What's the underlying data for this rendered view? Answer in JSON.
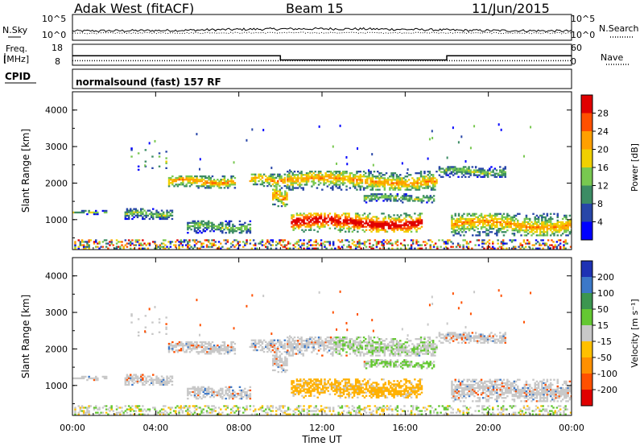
{
  "header": {
    "radar": "Adak West (fitACF)",
    "beam": "Beam 15",
    "date": "11/Jun/2015"
  },
  "top_panels": {
    "nsky_label": "N.Sky",
    "nsearch_label": "N.Search",
    "noise_ticks": [
      "10^5",
      "10^0"
    ],
    "freq_label": "Freq.",
    "freq_unit": "[MHz]",
    "freq_ticks": [
      "18",
      "8"
    ],
    "nave_label": "Nave",
    "nave_ticks": [
      "60",
      "0"
    ],
    "cpid_label": "CPID",
    "cpid_text": "normalsound (fast) 157 RF"
  },
  "chart_data": [
    {
      "type": "heatmap",
      "name": "power",
      "ylabel": "Slant Range [km]",
      "xlabel": "Time UT",
      "xlim": [
        0,
        24
      ],
      "ylim": [
        180,
        4500
      ],
      "yticks": [
        "1000",
        "2000",
        "3000",
        "4000"
      ],
      "xticks": [
        "00:00",
        "04:00",
        "08:00",
        "12:00",
        "16:00",
        "20:00",
        "00:00"
      ],
      "colorbar": {
        "label": "Power [dB]",
        "ticks": [
          "4",
          "8",
          "12",
          "16",
          "20",
          "24",
          "28"
        ],
        "range": [
          0,
          30
        ],
        "colors": [
          "#0000ff",
          "#2846a8",
          "#3c8c64",
          "#78c850",
          "#f0d000",
          "#ffa000",
          "#ff5000",
          "#e00000"
        ]
      }
    },
    {
      "type": "heatmap",
      "name": "velocity",
      "ylabel": "Slant Range [km]",
      "xlabel": "Time UT",
      "xlim": [
        0,
        24
      ],
      "ylim": [
        180,
        4500
      ],
      "yticks": [
        "1000",
        "2000",
        "3000",
        "4000"
      ],
      "xticks": [
        "00:00",
        "04:00",
        "08:00",
        "12:00",
        "16:00",
        "20:00",
        "00:00"
      ],
      "colorbar": {
        "label": "Velocity [m s⁻¹]",
        "ticks": [
          "200",
          "100",
          "50",
          "15",
          "-15",
          "-50",
          "-100",
          "-200"
        ],
        "colors": [
          "#1e32b4",
          "#3c78c8",
          "#3c9650",
          "#64c832",
          "#c8c8c8",
          "#ffc000",
          "#ff9000",
          "#ff5000",
          "#e00000"
        ]
      }
    },
    {
      "type": "line",
      "name": "frequency",
      "ylabel": "Freq. [MHz]",
      "ylim": [
        8,
        18
      ],
      "x": [
        0,
        10,
        10,
        18,
        18,
        24
      ],
      "values": [
        12.5,
        12.5,
        10.5,
        10.5,
        12.5,
        12.5
      ]
    },
    {
      "type": "line",
      "name": "nave",
      "ylabel": "Nave",
      "ylim": [
        0,
        60
      ],
      "x": [
        0,
        24
      ],
      "values": [
        13,
        13
      ]
    }
  ],
  "scatter_regions": [
    {
      "t0": 0.0,
      "t1": 1.6,
      "r0": 1130,
      "r1": 1230,
      "mode": "lo"
    },
    {
      "t0": 2.5,
      "t1": 4.8,
      "r0": 1000,
      "r1": 1280,
      "mode": "lo"
    },
    {
      "t0": 4.6,
      "t1": 7.8,
      "r0": 1850,
      "r1": 2200,
      "mode": "mid"
    },
    {
      "t0": 5.5,
      "t1": 8.5,
      "r0": 620,
      "r1": 950,
      "mode": "lo"
    },
    {
      "t0": 8.5,
      "t1": 10.2,
      "r0": 1900,
      "r1": 2250,
      "mode": "mid"
    },
    {
      "t0": 9.6,
      "t1": 10.3,
      "r0": 1350,
      "r1": 1900,
      "mode": "mid"
    },
    {
      "t0": 10.3,
      "t1": 17.5,
      "r0": 1800,
      "r1": 2300,
      "mode": "mid"
    },
    {
      "t0": 10.5,
      "t1": 16.8,
      "r0": 650,
      "r1": 1150,
      "mode": "hi"
    },
    {
      "t0": 14.0,
      "t1": 17.4,
      "r0": 1450,
      "r1": 1700,
      "mode": "lo"
    },
    {
      "t0": 17.6,
      "t1": 20.8,
      "r0": 2150,
      "r1": 2450,
      "mode": "lo"
    },
    {
      "t0": 18.2,
      "t1": 24.0,
      "r0": 550,
      "r1": 1150,
      "mode": "mid"
    },
    {
      "t0": 2.8,
      "t1": 4.6,
      "r0": 2300,
      "r1": 3000,
      "mode": "sparse"
    },
    {
      "t0": 0.0,
      "t1": 24.0,
      "r0": 190,
      "r1": 420,
      "mode": "ground"
    }
  ]
}
